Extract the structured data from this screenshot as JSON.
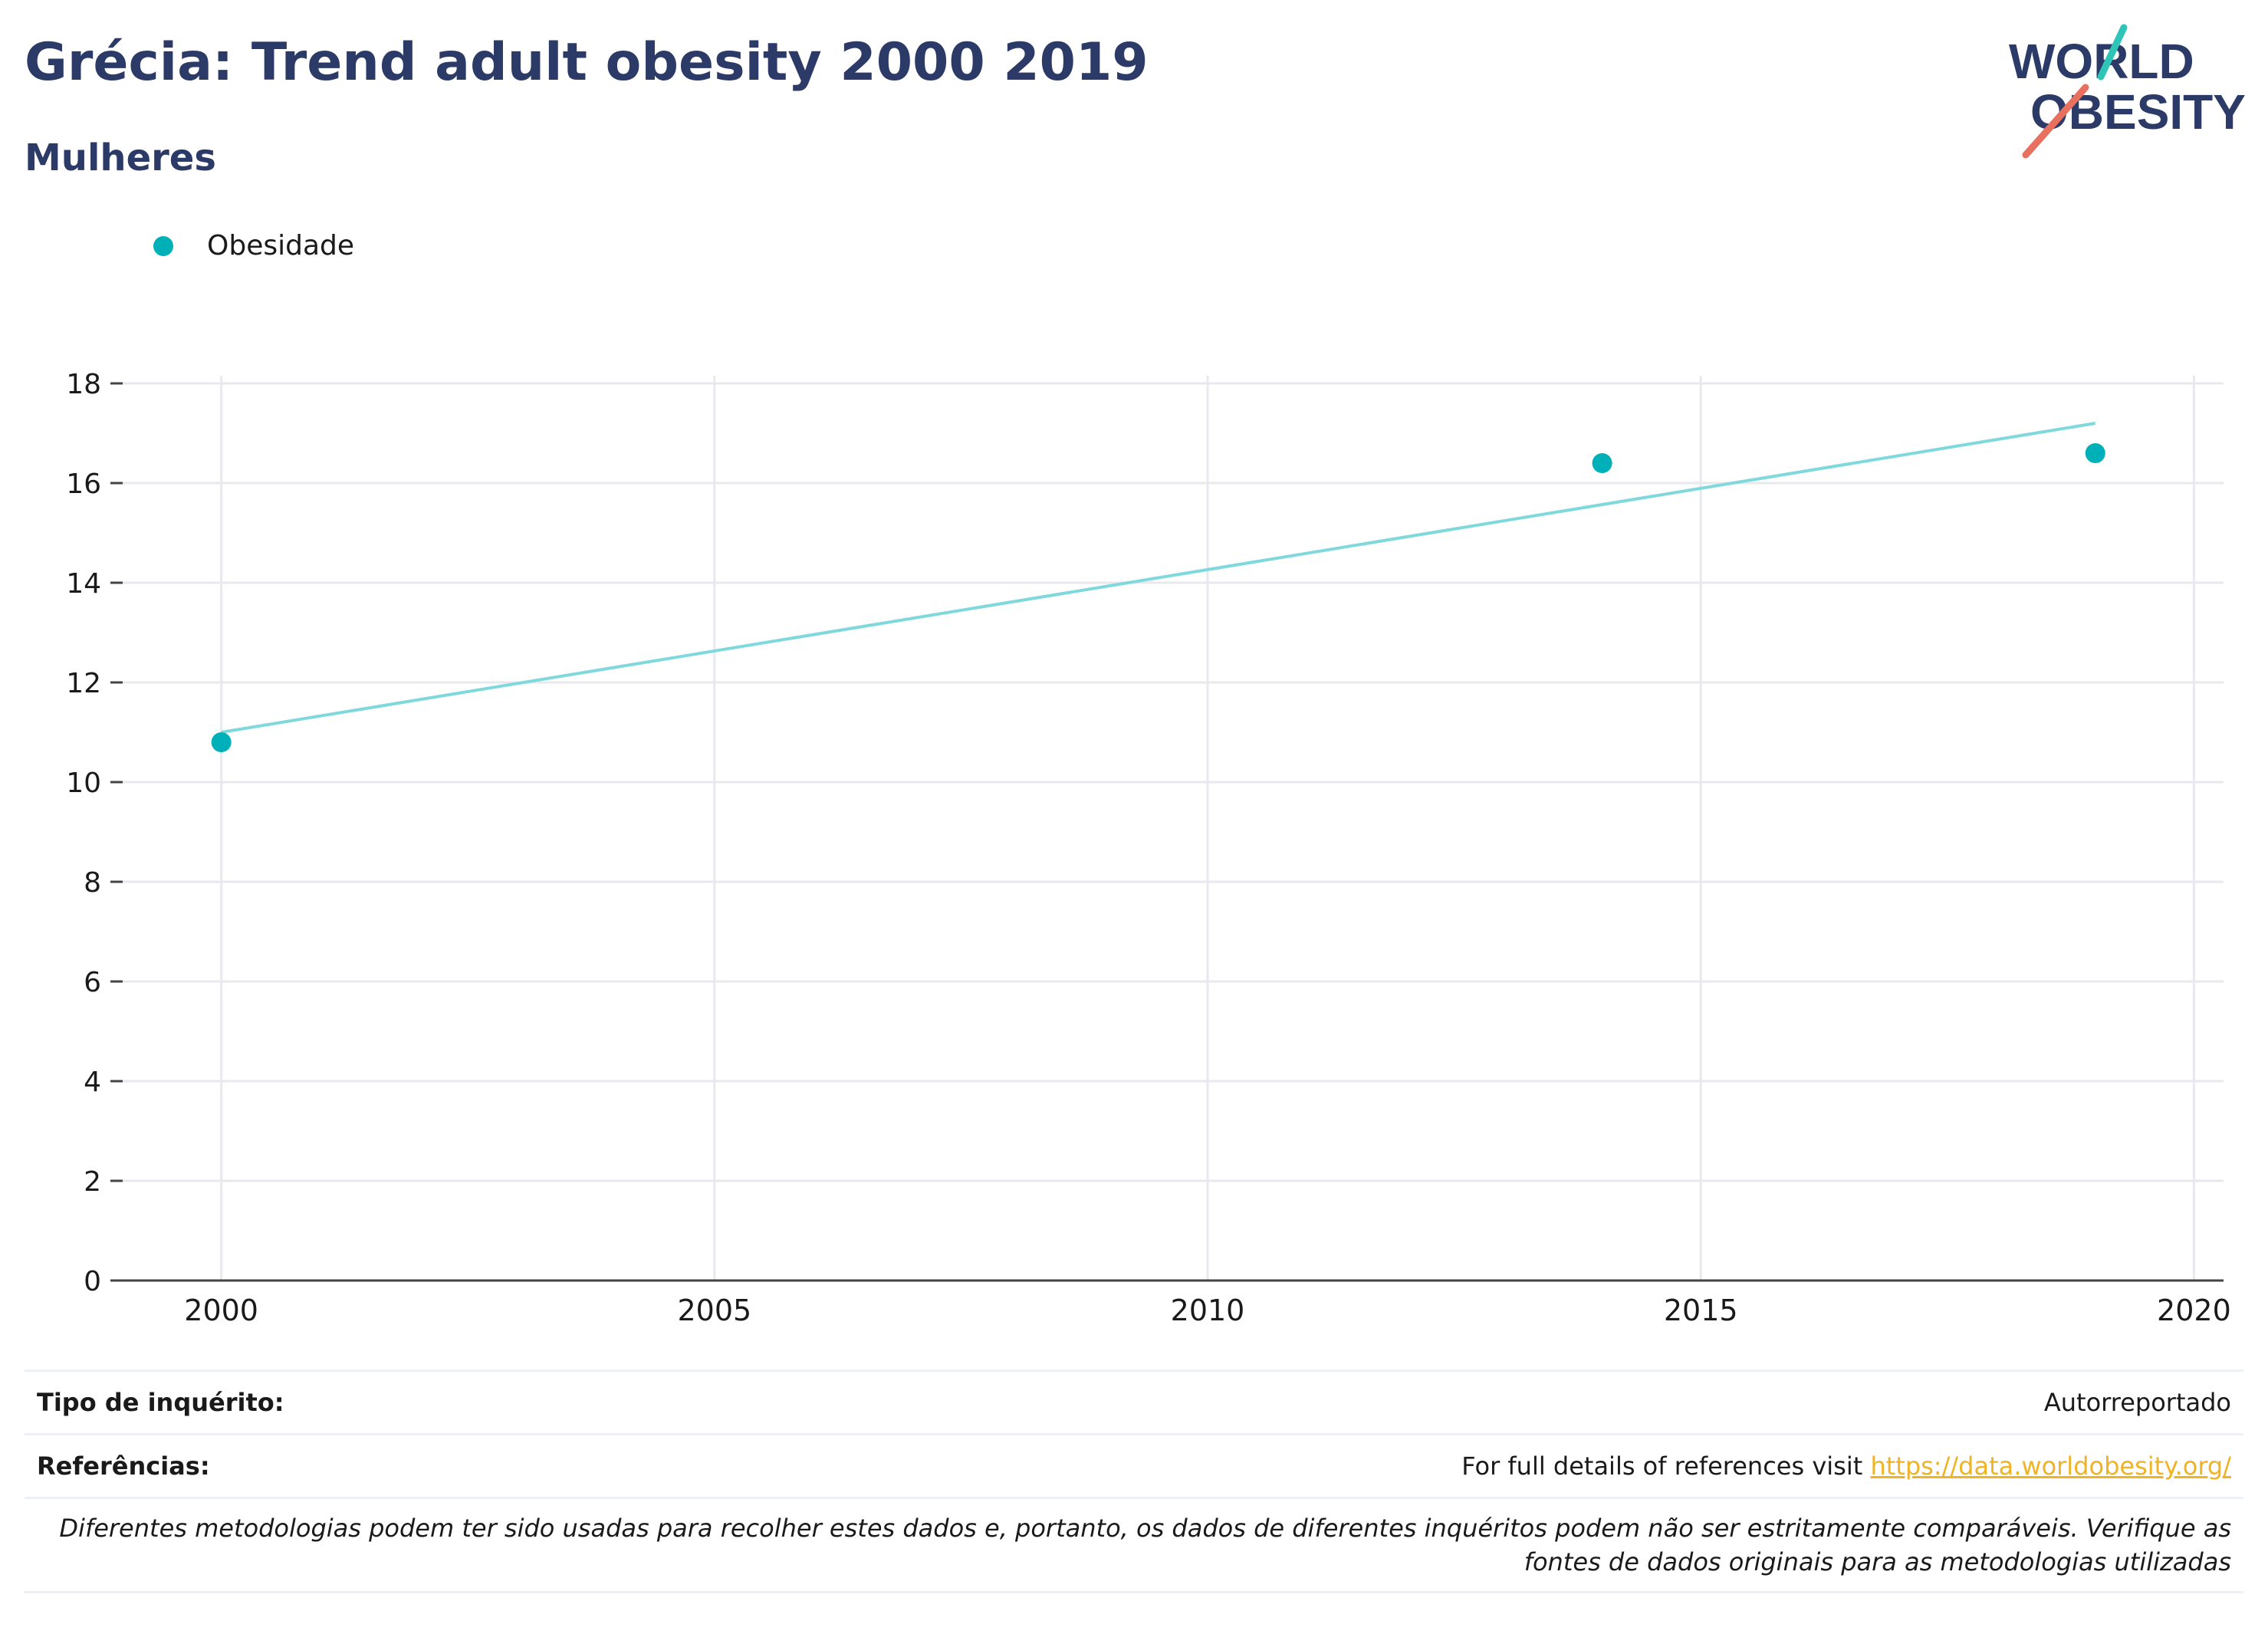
{
  "header": {
    "title": "Grécia: Trend adult obesity 2000 2019",
    "subtitle": "Mulheres"
  },
  "logo": {
    "line1": "WORLD",
    "line2": "OBESITY"
  },
  "colors": {
    "accent": "#00b0b9",
    "trend": "#7fd9dc",
    "title": "#2b3a67",
    "link": "#f0b323",
    "logo_teal": "#2ec4b6",
    "logo_coral": "#e8705f"
  },
  "chart_data": {
    "type": "scatter",
    "title": "Grécia: Trend adult obesity 2000 2019",
    "subtitle": "Mulheres",
    "xlabel": "",
    "ylabel": "",
    "xlim": [
      1999,
      2020.3
    ],
    "ylim": [
      0,
      18
    ],
    "xticks": [
      2000,
      2005,
      2010,
      2015,
      2020
    ],
    "yticks": [
      0,
      2,
      4,
      6,
      8,
      10,
      12,
      14,
      16,
      18
    ],
    "grid": true,
    "legend_position": "top-left",
    "series": [
      {
        "name": "Obesidade",
        "x": [
          2000,
          2014,
          2019
        ],
        "y": [
          10.8,
          16.4,
          16.6
        ]
      }
    ],
    "trendline": {
      "x": [
        2000,
        2019
      ],
      "y": [
        11.0,
        17.2
      ]
    }
  },
  "footer": {
    "survey_type_label": "Tipo de inquérito:",
    "survey_type_value": "Autorreportado",
    "references_label": "Referências:",
    "references_text": "For full details of references visit ",
    "references_link": "https://data.worldobesity.org/",
    "note": "Diferentes metodologias podem ter sido usadas para recolher estes dados e, portanto, os dados de diferentes inquéritos podem não ser estritamente comparáveis. Verifique as fontes de dados originais para as metodologias utilizadas"
  }
}
